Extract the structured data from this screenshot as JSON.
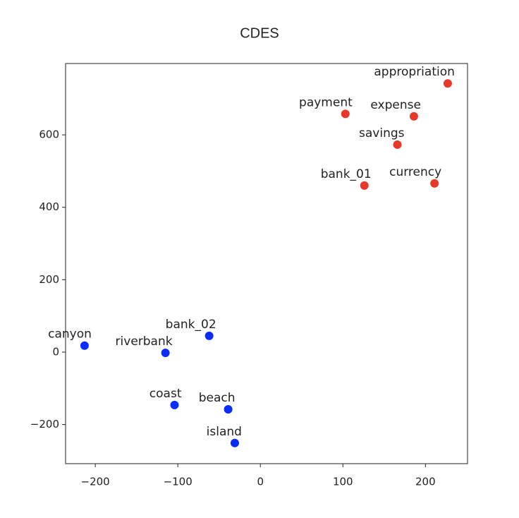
{
  "chart_data": {
    "type": "scatter",
    "title": "CDES",
    "xlim": [
      -236,
      251
    ],
    "ylim": [
      -308,
      797
    ],
    "xticks": [
      {
        "value": -200,
        "label": "−200"
      },
      {
        "value": -100,
        "label": "−100"
      },
      0,
      100,
      200
    ],
    "yticks": [
      {
        "value": -200,
        "label": "−200"
      },
      0,
      200,
      400,
      600
    ],
    "series": [
      {
        "color": "#e8382a",
        "labels": [
          "appropriation",
          "payment",
          "expense",
          "savings",
          "bank_01",
          "currency"
        ],
        "x": [
          227,
          103,
          186,
          166,
          126,
          211
        ],
        "y": [
          742,
          658,
          651,
          573,
          460,
          466
        ]
      },
      {
        "color": "#0a2df5",
        "labels": [
          "canyon",
          "riverbank",
          "bank_02",
          "coast",
          "beach",
          "island"
        ],
        "x": [
          -213,
          -115,
          -62,
          -104,
          -39,
          -31
        ],
        "y": [
          18,
          -2,
          45,
          -146,
          -158,
          -251
        ]
      }
    ]
  }
}
